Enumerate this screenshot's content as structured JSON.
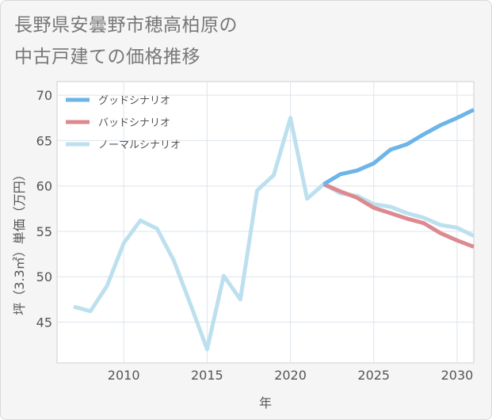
{
  "title_lines": [
    "長野県安曇野市穂高柏原の",
    "中古戸建ての価格推移"
  ],
  "chart_data": {
    "type": "line",
    "title": "長野県安曇野市穂高柏原の中古戸建ての価格推移",
    "xlabel": "年",
    "ylabel": "坪（3.3㎡）単価（万円）",
    "xlim": [
      2006,
      2031
    ],
    "ylim": [
      40.5,
      71.5
    ],
    "xticks": [
      2010,
      2015,
      2020,
      2025,
      2030
    ],
    "yticks": [
      45,
      50,
      55,
      60,
      65,
      70
    ],
    "grid": true,
    "legend_position": "top-left",
    "series": [
      {
        "name": "ノーマルシナリオ",
        "color": "#bde0ee",
        "x": [
          2007,
          2008,
          2009,
          2010,
          2011,
          2012,
          2013,
          2014,
          2015,
          2016,
          2017,
          2018,
          2019,
          2020,
          2021,
          2022,
          2023,
          2024,
          2025,
          2026,
          2027,
          2028,
          2029,
          2030,
          2031
        ],
        "values": [
          46.7,
          46.2,
          49.0,
          53.7,
          56.2,
          55.3,
          51.8,
          47.0,
          42.0,
          50.1,
          47.5,
          59.5,
          61.2,
          67.5,
          58.6,
          60.2,
          59.2,
          58.9,
          58.0,
          57.7,
          57.0,
          56.5,
          55.7,
          55.4,
          54.5
        ]
      },
      {
        "name": "バッドシナリオ",
        "color": "#dc8a8f",
        "x": [
          2022,
          2023,
          2024,
          2025,
          2026,
          2027,
          2028,
          2029,
          2030,
          2031
        ],
        "values": [
          60.2,
          59.4,
          58.7,
          57.6,
          57.0,
          56.4,
          55.9,
          54.8,
          54.0,
          53.3
        ]
      },
      {
        "name": "グッドシナリオ",
        "color": "#6cb5e8",
        "x": [
          2022,
          2023,
          2024,
          2025,
          2026,
          2027,
          2028,
          2029,
          2030,
          2031
        ],
        "values": [
          60.2,
          61.3,
          61.7,
          62.5,
          64.0,
          64.6,
          65.7,
          66.7,
          67.5,
          68.4
        ]
      }
    ],
    "legend": [
      {
        "name": "グッドシナリオ",
        "color": "#6cb5e8"
      },
      {
        "name": "バッドシナリオ",
        "color": "#dc8a8f"
      },
      {
        "name": "ノーマルシナリオ",
        "color": "#bde0ee"
      }
    ]
  }
}
